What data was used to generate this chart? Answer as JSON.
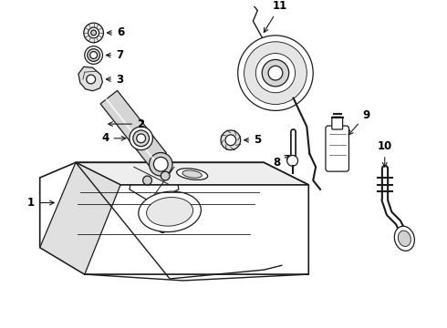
{
  "background_color": "#ffffff",
  "line_color": "#1a1a1a",
  "text_color": "#000000",
  "fig_width": 4.9,
  "fig_height": 3.6,
  "dpi": 100
}
